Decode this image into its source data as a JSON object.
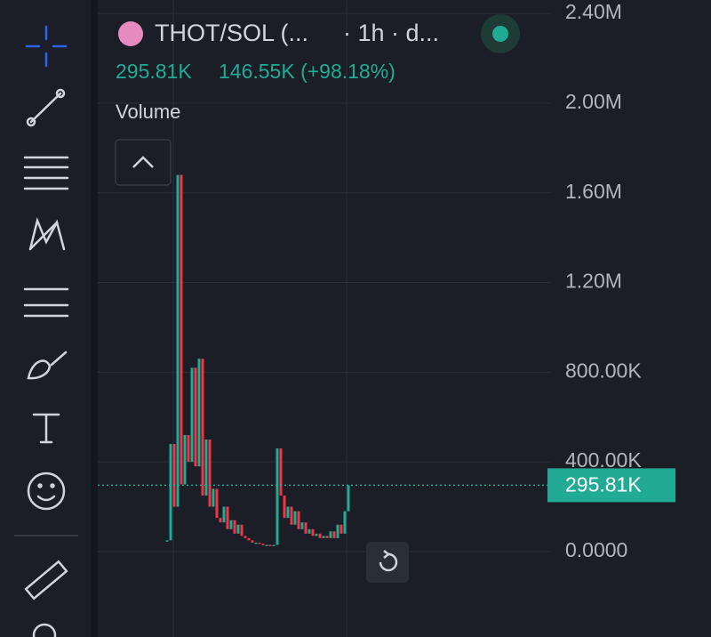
{
  "header": {
    "symbol": "THOT/SOL (...",
    "interval": "· 1h · d...",
    "price": "295.81K",
    "change": "146.55K (+98.18%)",
    "indicator": "Volume"
  },
  "chart_data": {
    "type": "candlestick",
    "values": [
      50000,
      480000,
      200000,
      1680000,
      300000,
      520000,
      400000,
      820000,
      380000,
      860000,
      250000,
      500000,
      200000,
      280000,
      150000,
      130000,
      200000,
      100000,
      140000,
      80000,
      120000,
      70000,
      60000,
      50000,
      40000,
      40000,
      35000,
      30000,
      30000,
      28000,
      30000,
      460000,
      250000,
      150000,
      200000,
      120000,
      180000,
      100000,
      130000,
      80000,
      100000,
      70000,
      80000,
      60000,
      70000,
      60000,
      90000,
      60000,
      120000,
      80000,
      180000,
      295810
    ],
    "up_color": "#22ab94",
    "down_color": "#f23645",
    "ylim": [
      -381000,
      2460000
    ],
    "yticks": [
      {
        "value": 0,
        "label": "0.0000"
      },
      {
        "value": 400000,
        "label": "400.00K"
      },
      {
        "value": 800000,
        "label": "800.00K"
      },
      {
        "value": 1200000,
        "label": "1.20M"
      },
      {
        "value": 1600000,
        "label": "1.60M"
      },
      {
        "value": 2000000,
        "label": "2.00M"
      },
      {
        "value": 2400000,
        "label": "2.40M"
      }
    ],
    "last_price": {
      "value": 295810,
      "label": "295.81K"
    },
    "grid": true
  }
}
